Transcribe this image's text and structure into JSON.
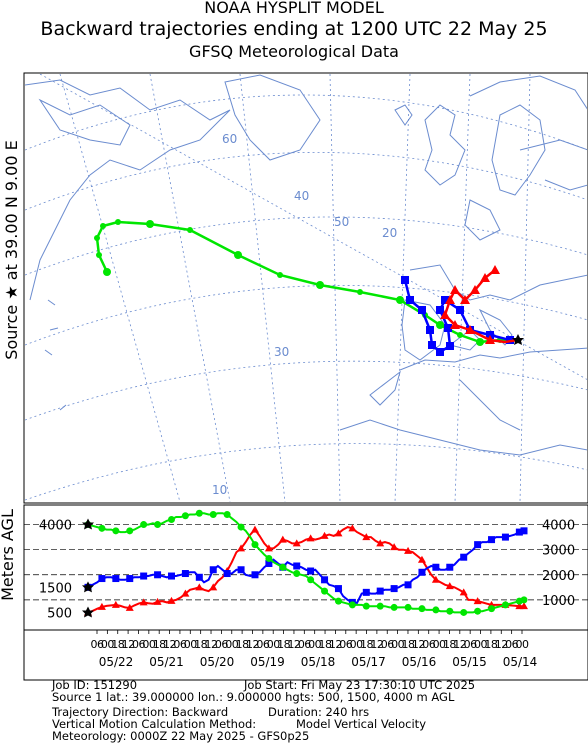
{
  "header": {
    "line1": "NOAA HYSPLIT MODEL",
    "line2": "Backward trajectories ending at 1200 UTC 22 May 25",
    "line3": "GFSQ Meteorological Data"
  },
  "side_label": "Source ★ at   39.00 N    9.00 E",
  "agl_label": "Meters AGL",
  "map": {
    "graticule_labels": [
      "60",
      "50",
      "40",
      "30",
      "20",
      "10",
      "20",
      "30",
      "40",
      "50"
    ],
    "source_marker": "star-icon",
    "colors": {
      "low": "#ff0000",
      "mid": "#0000ff",
      "high": "#00e600",
      "land": "#6b8ccf"
    }
  },
  "chart_data": {
    "type": "line",
    "title": "Backward trajectories ending at 1200 UTC 22 May 25",
    "ylabel": "Meters AGL",
    "x_direction": "reversed (time runs backward left to right)",
    "left_ticks": [
      "4000",
      "1500",
      "500"
    ],
    "right_ticks": [
      "4000",
      "3000",
      "2000",
      "1000"
    ],
    "ylim": [
      0,
      4500
    ],
    "grid_lines": [
      1000,
      2000,
      3000,
      4000
    ],
    "hour_labels": [
      "06",
      "00",
      "18",
      "12",
      "06",
      "00",
      "18",
      "12",
      "06",
      "00",
      "18",
      "12",
      "06",
      "00",
      "18",
      "12",
      "06",
      "00",
      "18",
      "12",
      "06",
      "00",
      "18",
      "12",
      "06",
      "00",
      "18",
      "12",
      "06",
      "00",
      "18",
      "12",
      "06",
      "00",
      "18",
      "12",
      "06",
      "00",
      "18",
      "12",
      "06",
      "00"
    ],
    "date_labels": [
      "05/22",
      "05/21",
      "05/20",
      "05/19",
      "05/18",
      "05/17",
      "05/16",
      "05/15",
      "05/14"
    ],
    "series": [
      {
        "color": "#ff0000",
        "marker": "triangle",
        "values": [
          500,
          560,
          650,
          720,
          760,
          780,
          800,
          760,
          700,
          680,
          780,
          860,
          900,
          870,
          850,
          920,
          950,
          900,
          960,
          1000,
          1100,
          1250,
          1400,
          1450,
          1500,
          1400,
          1350,
          1500,
          1750,
          1900,
          2150,
          2500,
          2900,
          3050,
          3300,
          3600,
          3800,
          3550,
          3250,
          3050,
          3050,
          3200,
          3400,
          3350,
          3250,
          3250,
          3300,
          3400,
          3450,
          3400,
          3450,
          3550,
          3600,
          3550,
          3650,
          3800,
          3900,
          3850,
          3700,
          3600,
          3500,
          3500,
          3350,
          3250,
          3300,
          3250,
          3100,
          3000,
          3000,
          2950,
          2900,
          2750,
          2600,
          2300,
          2000,
          1800,
          1700,
          1600,
          1550,
          1500,
          1400,
          1300,
          1000,
          1000,
          950,
          900,
          850,
          800,
          800,
          800,
          800,
          780,
          770,
          750,
          750
        ]
      },
      {
        "color": "#0000ff",
        "marker": "square",
        "values": [
          1500,
          1600,
          1700,
          1850,
          1900,
          1900,
          1850,
          1800,
          1800,
          1850,
          1900,
          1900,
          1950,
          1950,
          2000,
          2000,
          1950,
          1900,
          1950,
          1950,
          2000,
          2050,
          2100,
          2100,
          1900,
          1700,
          1800,
          2200,
          2350,
          2200,
          2050,
          2050,
          2200,
          2200,
          2000,
          1950,
          2000,
          2100,
          2300,
          2450,
          2600,
          2450,
          2300,
          2500,
          2400,
          2350,
          2300,
          2200,
          2150,
          2200,
          2000,
          1800,
          1600,
          1550,
          1450,
          1150,
          1000,
          900,
          880,
          1250,
          1300,
          1250,
          1250,
          1350,
          1400,
          1400,
          1450,
          1500,
          1600,
          1600,
          1800,
          1900,
          2100,
          2250,
          2350,
          2300,
          2200,
          2200,
          2300,
          2400,
          2600,
          2700,
          2850,
          3000,
          3200,
          3300,
          3300,
          3400,
          3500,
          3500,
          3500,
          3550,
          3600,
          3700,
          3750
        ]
      },
      {
        "color": "#00e600",
        "marker": "circle",
        "values": [
          4000,
          3950,
          3900,
          3850,
          3800,
          3800,
          3750,
          3700,
          3700,
          3750,
          3800,
          3900,
          4000,
          4000,
          4050,
          4000,
          4050,
          4150,
          4200,
          4300,
          4300,
          4350,
          4400,
          4400,
          4450,
          4450,
          4400,
          4400,
          4450,
          4450,
          4400,
          4250,
          4100,
          3900,
          3750,
          3500,
          3200,
          3000,
          2800,
          2650,
          2500,
          2400,
          2300,
          2200,
          2100,
          2050,
          2000,
          1950,
          1800,
          1650,
          1500,
          1350,
          1200,
          1050,
          950,
          900,
          850,
          800,
          800,
          800,
          750,
          750,
          750,
          750,
          750,
          700,
          700,
          700,
          700,
          700,
          650,
          650,
          650,
          600,
          600,
          600,
          550,
          550,
          550,
          500,
          500,
          500,
          500,
          500,
          550,
          550,
          600,
          650,
          700,
          750,
          800,
          850,
          900,
          950,
          1000
        ]
      }
    ]
  },
  "footer": {
    "job_id": "Job ID: 151290",
    "job_start": "Job Start: Fri May 23 17:30:10 UTC 2025",
    "source": "Source 1 lat.: 39.000000   lon.: 9.000000   hgts: 500, 1500, 4000 m AGL",
    "direction": "Trajectory Direction: Backward",
    "duration": "Duration: 240 hrs",
    "vertical_method": "Vertical Motion Calculation Method:",
    "vertical_value": "Model Vertical Velocity",
    "meteorology": "Meteorology: 0000Z 22 May 2025 - GFS0p25"
  }
}
